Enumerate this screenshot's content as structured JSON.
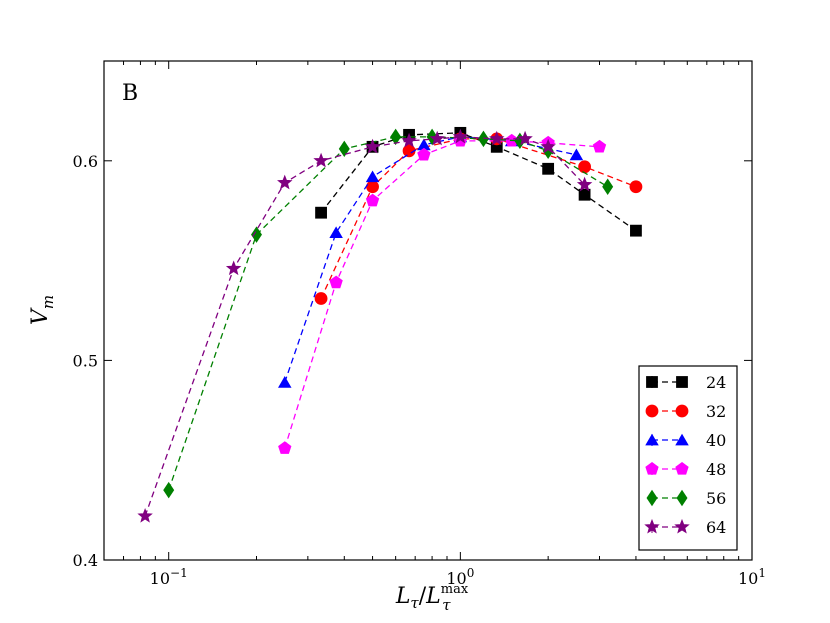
{
  "chart_data": {
    "type": "line",
    "panel_label": "B",
    "xlabel": "L",
    "xlabel_sub": "τ",
    "xlabel_den": "L",
    "xlabel_den_sub": "τ",
    "xlabel_den_sup": "max",
    "ylabel": "V",
    "ylabel_sub": "m",
    "x_scale": "log",
    "xlim": [
      0.06,
      10
    ],
    "ylim": [
      0.4,
      0.65
    ],
    "x_ticks": [
      {
        "value": 0.1,
        "base": "10",
        "exp": "−1"
      },
      {
        "value": 1,
        "base": "10",
        "exp": "0"
      },
      {
        "value": 10,
        "base": "10",
        "exp": "1"
      }
    ],
    "y_ticks": [
      {
        "value": 0.4,
        "label": "0.4"
      },
      {
        "value": 0.5,
        "label": "0.5"
      },
      {
        "value": 0.6,
        "label": "0.6"
      }
    ],
    "legend_position": "bottom-right",
    "series": [
      {
        "name": "24",
        "color": "#000000",
        "marker": "square",
        "x": [
          0.333,
          0.5,
          0.667,
          1.0,
          1.333,
          2.0,
          2.667,
          4.0
        ],
        "y": [
          0.574,
          0.607,
          0.613,
          0.614,
          0.607,
          0.596,
          0.583,
          0.565
        ]
      },
      {
        "name": "32",
        "color": "#ff0000",
        "marker": "circle",
        "x": [
          0.333,
          0.5,
          0.667,
          1.0,
          1.333,
          2.667,
          4.0
        ],
        "y": [
          0.531,
          0.587,
          0.605,
          0.611,
          0.611,
          0.597,
          0.587
        ]
      },
      {
        "name": "40",
        "color": "#0000ff",
        "marker": "triangle",
        "x": [
          0.25,
          0.375,
          0.5,
          0.75,
          1.0,
          1.5,
          2.5
        ],
        "y": [
          0.489,
          0.564,
          0.592,
          0.608,
          0.612,
          0.61,
          0.603
        ]
      },
      {
        "name": "48",
        "color": "#ff00ff",
        "marker": "pentagon",
        "x": [
          0.25,
          0.375,
          0.5,
          0.75,
          1.0,
          1.5,
          2.0,
          3.0
        ],
        "y": [
          0.456,
          0.539,
          0.58,
          0.603,
          0.61,
          0.61,
          0.609,
          0.607
        ]
      },
      {
        "name": "56",
        "color": "#008000",
        "marker": "diamond",
        "x": [
          0.1,
          0.2,
          0.4,
          0.6,
          0.8,
          1.2,
          1.6,
          2.0,
          3.2
        ],
        "y": [
          0.435,
          0.563,
          0.606,
          0.612,
          0.612,
          0.611,
          0.61,
          0.605,
          0.587
        ]
      },
      {
        "name": "64",
        "color": "#800080",
        "marker": "star",
        "x": [
          0.083,
          0.167,
          0.25,
          0.333,
          0.5,
          0.667,
          0.833,
          1.0,
          1.333,
          1.667,
          2.0,
          2.667
        ],
        "y": [
          0.422,
          0.546,
          0.589,
          0.6,
          0.607,
          0.61,
          0.611,
          0.612,
          0.611,
          0.611,
          0.607,
          0.588
        ]
      }
    ]
  }
}
